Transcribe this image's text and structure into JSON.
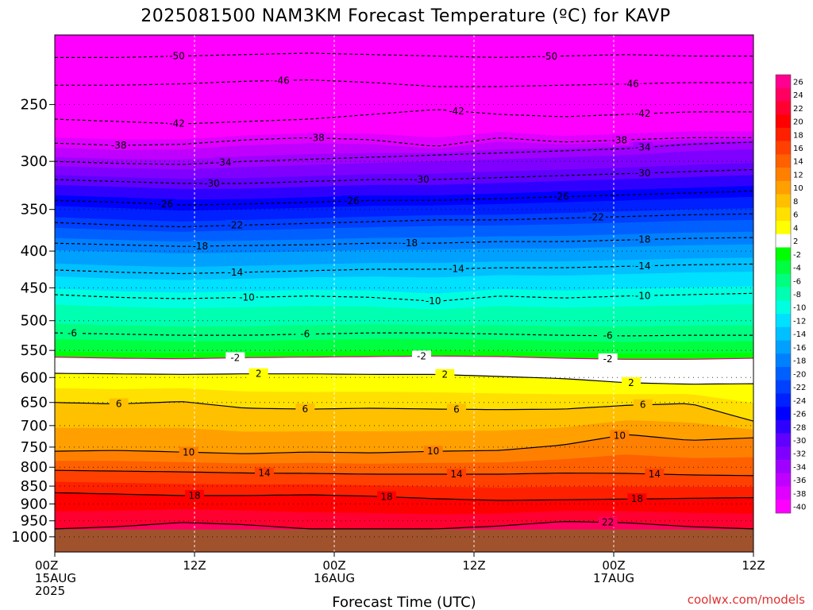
{
  "chart_data": {
    "type": "heatmap",
    "title": "2025081500 NAM3KM Forecast Temperature (ºC) for KAVP",
    "xlabel": "Forecast Time (UTC)",
    "credit": "coolwx.com/models",
    "x_ticks": [
      {
        "hour": 0,
        "lines": [
          "00Z",
          "15AUG",
          "2025"
        ]
      },
      {
        "hour": 12,
        "lines": [
          "12Z"
        ]
      },
      {
        "hour": 24,
        "lines": [
          "00Z",
          "16AUG"
        ]
      },
      {
        "hour": 36,
        "lines": [
          "12Z"
        ]
      },
      {
        "hour": 48,
        "lines": [
          "00Z",
          "17AUG"
        ]
      },
      {
        "hour": 60,
        "lines": [
          "12Z"
        ]
      }
    ],
    "xlim": [
      0,
      60
    ],
    "y_ticks": [
      250,
      300,
      350,
      400,
      450,
      500,
      550,
      600,
      650,
      700,
      750,
      800,
      850,
      900,
      950,
      1000
    ],
    "ylim": [
      1050,
      200
    ],
    "y_scale": "log-pressure",
    "grid": true,
    "surface_pressure_hPa": 977,
    "colorbar": {
      "labels": [
        "26",
        "24",
        "22",
        "20",
        "18",
        "16",
        "14",
        "12",
        "10",
        "8",
        "6",
        "4",
        "2",
        "-2",
        "-4",
        "-6",
        "-8",
        "-10",
        "-12",
        "-14",
        "-16",
        "-18",
        "-20",
        "-22",
        "-24",
        "-26",
        "-28",
        "-30",
        "-32",
        "-34",
        "-36",
        "-38",
        "-40"
      ],
      "colors": [
        "#ff0090",
        "#ff0060",
        "#ff0030",
        "#ff0000",
        "#ff2000",
        "#ff4000",
        "#ff6000",
        "#ff8000",
        "#ffa000",
        "#ffc000",
        "#ffe000",
        "#ffff00",
        "#ffffff",
        "#00ff00",
        "#00ff40",
        "#00ff80",
        "#00ffb0",
        "#00ffe0",
        "#00e0ff",
        "#00c0ff",
        "#00a0ff",
        "#0080ff",
        "#0060ff",
        "#0040ff",
        "#0020ff",
        "#0000ff",
        "#3000ff",
        "#6000ff",
        "#8000ff",
        "#a000ff",
        "#c000ff",
        "#e000ff",
        "#ff00ff"
      ]
    },
    "contours": [
      {
        "value": -50,
        "pressure": [
          215,
          215,
          214,
          213,
          212,
          213,
          214,
          215,
          214,
          213,
          214,
          214
        ],
        "labels": [
          {
            "hour": 10.5,
            "text": "-50"
          },
          {
            "hour": 42.5,
            "text": "-50"
          }
        ]
      },
      {
        "value": -46,
        "pressure": [
          235,
          235,
          234,
          232,
          231,
          233,
          236,
          236,
          235,
          234,
          233,
          233
        ],
        "labels": [
          {
            "hour": 19.5,
            "text": "-46"
          },
          {
            "hour": 49.5,
            "text": "-46"
          }
        ]
      },
      {
        "value": -42,
        "pressure": [
          262,
          264,
          266,
          264,
          262,
          258,
          254,
          258,
          260,
          258,
          256,
          256
        ],
        "labels": [
          {
            "hour": 10.5,
            "text": "-42"
          },
          {
            "hour": 34.5,
            "text": "-42"
          },
          {
            "hour": 50.5,
            "text": "-42"
          }
        ]
      },
      {
        "value": -38,
        "pressure": [
          283,
          285,
          284,
          280,
          278,
          280,
          286,
          278,
          282,
          280,
          278,
          278
        ],
        "labels": [
          {
            "hour": 5.5,
            "text": "-38"
          },
          {
            "hour": 22.5,
            "text": "-38"
          },
          {
            "hour": 48.5,
            "text": "-38"
          }
        ]
      },
      {
        "value": -34,
        "pressure": [
          300,
          302,
          303,
          300,
          298,
          296,
          294,
          292,
          290,
          288,
          284,
          282
        ],
        "labels": [
          {
            "hour": 14.5,
            "text": "-34"
          },
          {
            "hour": 50.5,
            "text": "-34"
          }
        ]
      },
      {
        "value": -30,
        "pressure": [
          318,
          320,
          322,
          322,
          320,
          318,
          318,
          316,
          314,
          312,
          310,
          308
        ],
        "labels": [
          {
            "hour": 13.5,
            "text": "-30"
          },
          {
            "hour": 31.5,
            "text": "-30"
          },
          {
            "hour": 50.5,
            "text": "-30"
          }
        ]
      },
      {
        "value": -26,
        "pressure": [
          340,
          342,
          345,
          344,
          342,
          340,
          340,
          338,
          336,
          334,
          332,
          330
        ],
        "labels": [
          {
            "hour": 9.5,
            "text": "-26"
          },
          {
            "hour": 25.5,
            "text": "-26"
          },
          {
            "hour": 43.5,
            "text": "-26"
          }
        ]
      },
      {
        "value": -22,
        "pressure": [
          365,
          368,
          370,
          368,
          366,
          364,
          362,
          362,
          360,
          358,
          356,
          355
        ],
        "labels": [
          {
            "hour": 15.5,
            "text": "-22"
          },
          {
            "hour": 46.5,
            "text": "-22"
          }
        ]
      },
      {
        "value": -18,
        "pressure": [
          390,
          392,
          394,
          393,
          392,
          390,
          390,
          388,
          388,
          386,
          384,
          383
        ],
        "labels": [
          {
            "hour": 12.5,
            "text": "-18"
          },
          {
            "hour": 30.5,
            "text": "-18"
          },
          {
            "hour": 50.5,
            "text": "-18"
          }
        ]
      },
      {
        "value": -14,
        "pressure": [
          425,
          428,
          430,
          428,
          426,
          424,
          424,
          422,
          422,
          420,
          418,
          417
        ],
        "labels": [
          {
            "hour": 15.5,
            "text": "-14"
          },
          {
            "hour": 34.5,
            "text": "-14"
          },
          {
            "hour": 50.5,
            "text": "-14"
          }
        ]
      },
      {
        "value": -10,
        "pressure": [
          460,
          464,
          466,
          464,
          462,
          464,
          470,
          462,
          465,
          462,
          460,
          458
        ],
        "labels": [
          {
            "hour": 16.5,
            "text": "-10"
          },
          {
            "hour": 32.5,
            "text": "-10"
          },
          {
            "hour": 50.5,
            "text": "-10"
          }
        ]
      },
      {
        "value": -6,
        "pressure": [
          520,
          522,
          524,
          524,
          522,
          520,
          520,
          522,
          524,
          525,
          524,
          524
        ],
        "labels": [
          {
            "hour": 1.5,
            "text": "-6"
          },
          {
            "hour": 21.5,
            "text": "-6"
          },
          {
            "hour": 47.5,
            "text": "-6"
          }
        ]
      },
      {
        "value": -2,
        "pressure": [
          562,
          564,
          565,
          563,
          562,
          561,
          560,
          561,
          564,
          566,
          566,
          564
        ],
        "labels": [
          {
            "hour": 15.5,
            "text": "-2"
          },
          {
            "hour": 31.5,
            "text": "-2"
          },
          {
            "hour": 47.5,
            "text": "-2"
          }
        ]
      },
      {
        "value": 2,
        "pressure": [
          592,
          593,
          594,
          593,
          593,
          594,
          594,
          598,
          602,
          610,
          613,
          612
        ],
        "labels": [
          {
            "hour": 17.5,
            "text": "2"
          },
          {
            "hour": 33.5,
            "text": "2"
          },
          {
            "hour": 49.5,
            "text": "2"
          }
        ]
      },
      {
        "value": 6,
        "pressure": [
          650,
          653,
          648,
          662,
          664,
          662,
          664,
          665,
          664,
          656,
          652,
          690
        ],
        "labels": [
          {
            "hour": 5.5,
            "text": "6"
          },
          {
            "hour": 21.5,
            "text": "6"
          },
          {
            "hour": 34.5,
            "text": "6"
          },
          {
            "hour": 50.5,
            "text": "6"
          }
        ]
      },
      {
        "value": 10,
        "pressure": [
          760,
          758,
          762,
          766,
          762,
          764,
          760,
          758,
          745,
          720,
          734,
          728
        ],
        "labels": [
          {
            "hour": 11.5,
            "text": "10"
          },
          {
            "hour": 32.5,
            "text": "10"
          },
          {
            "hour": 48.5,
            "text": "10"
          }
        ]
      },
      {
        "value": 14,
        "pressure": [
          808,
          810,
          812,
          815,
          816,
          818,
          818,
          818,
          815,
          816,
          820,
          822
        ],
        "labels": [
          {
            "hour": 18.0,
            "text": "14"
          },
          {
            "hour": 34.5,
            "text": "14"
          },
          {
            "hour": 51.5,
            "text": "14"
          }
        ]
      },
      {
        "value": 18,
        "pressure": [
          868,
          872,
          876,
          876,
          874,
          878,
          885,
          890,
          888,
          886,
          884,
          882
        ],
        "labels": [
          {
            "hour": 12.0,
            "text": "18"
          },
          {
            "hour": 28.5,
            "text": "18"
          },
          {
            "hour": 50.0,
            "text": "18"
          }
        ]
      },
      {
        "value": 22,
        "pressure": [
          975,
          968,
          955,
          962,
          975,
          975,
          975,
          966,
          952,
          956,
          968,
          975
        ],
        "labels": [
          {
            "hour": 47.5,
            "text": "22"
          }
        ]
      }
    ]
  }
}
